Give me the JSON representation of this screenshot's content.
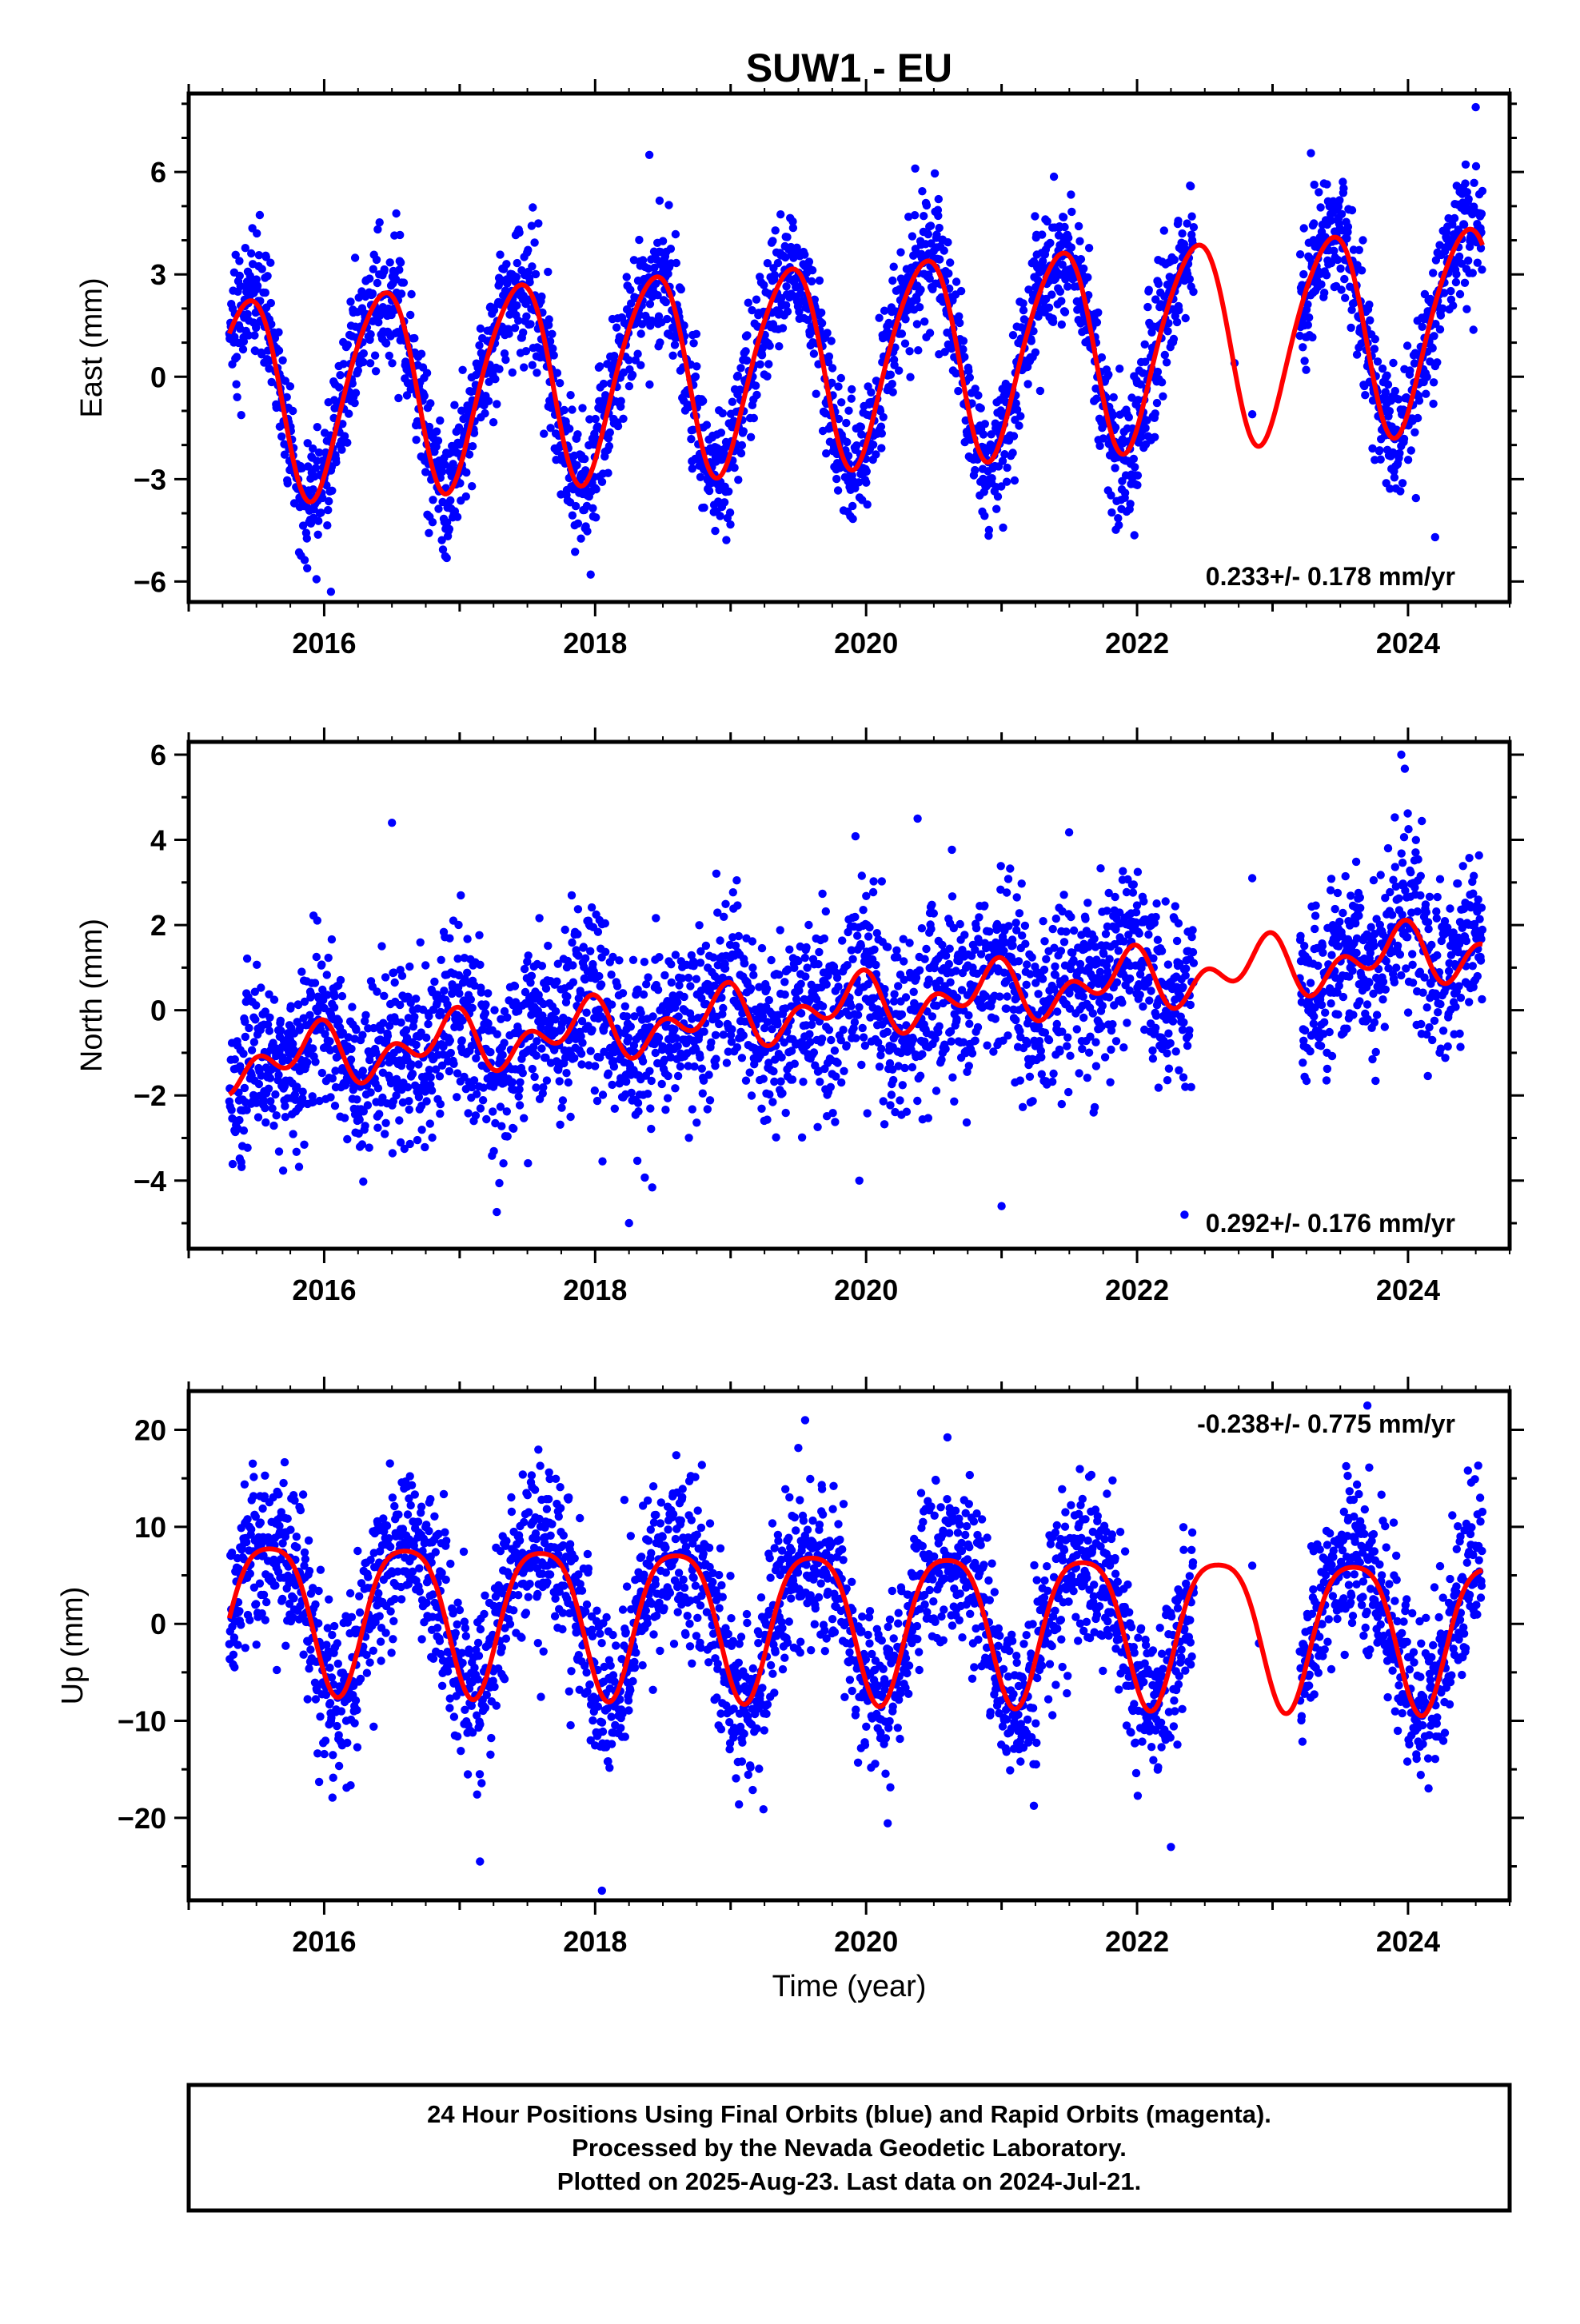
{
  "title": "SUW1 - EU",
  "xlabel": "Time (year)",
  "footer_lines": [
    "24 Hour Positions Using Final Orbits (blue) and Rapid Orbits (magenta).",
    "Processed by the Nevada Geodetic Laboratory.",
    "Plotted on 2025-Aug-23. Last data on 2024-Jul-21."
  ],
  "colors": {
    "points": "#0000ff",
    "model": "#ff0000",
    "frame": "#000000"
  },
  "chart_data": [
    {
      "type": "scatter",
      "component": "east",
      "ylabel": "East (mm)",
      "rate_text": "0.233+/- 0.178 mm/yr",
      "xlim": [
        2015.0,
        2024.75
      ],
      "ylim": [
        -6.6,
        8.3
      ],
      "xticks": [
        2016,
        2018,
        2020,
        2022,
        2024
      ],
      "yticks": [
        -6,
        -3,
        0,
        3,
        6
      ],
      "series": [
        {
          "role": "final orbit daily positions",
          "x_range": [
            2015.3,
            2024.55
          ],
          "gaps": [
            [
              2022.42,
              2023.2
            ]
          ],
          "scatter_sd": 0.95,
          "isolated_points": [
            [
              2022.72,
              0.4
            ],
            [
              2022.85,
              -1.1
            ],
            [
              2024.5,
              7.9
            ],
            [
              2016.05,
              -6.3
            ],
            [
              2018.4,
              6.5
            ],
            [
              2024.2,
              -4.7
            ]
          ]
        },
        {
          "role": "fitted model (annual + semiannual + trend)",
          "t0": 2015.3,
          "offset": -0.6,
          "trend": 0.233,
          "annual_amp": 2.95,
          "annual_peak_year_fraction": 0.42,
          "semiannual_amp": 0.35,
          "semiannual_phase": 0.1
        }
      ]
    },
    {
      "type": "scatter",
      "component": "north",
      "ylabel": "North (mm)",
      "rate_text": "0.292+/- 0.176 mm/yr",
      "xlim": [
        2015.0,
        2024.75
      ],
      "ylim": [
        -5.6,
        6.3
      ],
      "xticks": [
        2016,
        2018,
        2020,
        2022,
        2024
      ],
      "yticks": [
        -4,
        -2,
        0,
        2,
        4,
        6
      ],
      "series": [
        {
          "role": "final orbit daily positions",
          "x_range": [
            2015.3,
            2024.55
          ],
          "gaps": [
            [
              2022.42,
              2023.2
            ]
          ],
          "scatter_sd": 1.05,
          "isolated_points": [
            [
              2016.5,
              4.4
            ],
            [
              2020.38,
              4.5
            ],
            [
              2023.95,
              6.0
            ],
            [
              2018.25,
              -5.0
            ],
            [
              2021.0,
              -4.6
            ],
            [
              2022.35,
              -4.8
            ],
            [
              2019.95,
              -4.0
            ],
            [
              2022.85,
              3.1
            ]
          ]
        },
        {
          "role": "fitted model (annual + semiannual + trend)",
          "t0": 2015.3,
          "offset": -1.25,
          "trend": 0.292,
          "annual_amp": 0.45,
          "annual_peak_year_fraction": 0.9,
          "semiannual_amp": 0.45,
          "semiannual_phase": 0.0
        }
      ]
    },
    {
      "type": "scatter",
      "component": "up",
      "ylabel": "Up (mm)",
      "rate_text": "-0.238+/- 0.775 mm/yr",
      "xlim": [
        2015.0,
        2024.75
      ],
      "ylim": [
        -28.5,
        24.0
      ],
      "xticks": [
        2016,
        2018,
        2020,
        2022,
        2024
      ],
      "yticks": [
        -20,
        -10,
        0,
        10,
        20
      ],
      "series": [
        {
          "role": "final orbit daily positions",
          "x_range": [
            2015.3,
            2024.55
          ],
          "gaps": [
            [
              2022.42,
              2023.2
            ]
          ],
          "scatter_sd": 4.3,
          "isolated_points": [
            [
              2018.05,
              -27.5
            ],
            [
              2017.15,
              -24.5
            ],
            [
              2022.25,
              -23.0
            ],
            [
              2019.55,
              21.0
            ],
            [
              2023.7,
              22.5
            ],
            [
              2022.85,
              6.0
            ],
            [
              2022.9,
              -2.0
            ]
          ]
        },
        {
          "role": "fitted model (annual + semiannual + trend)",
          "t0": 2015.3,
          "offset": 1.7,
          "trend": -0.238,
          "annual_amp": 7.6,
          "annual_peak_year_fraction": 0.6,
          "semiannual_amp": 1.5,
          "semiannual_phase": 0.35
        }
      ]
    }
  ]
}
